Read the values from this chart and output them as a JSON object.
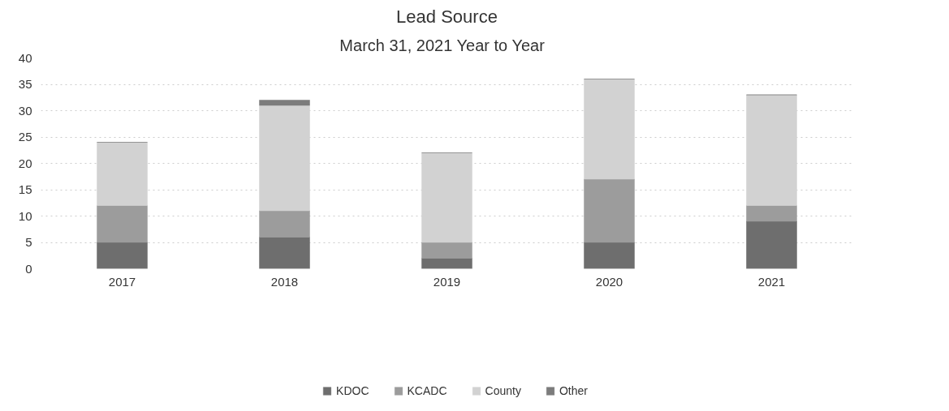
{
  "chart_data": {
    "type": "bar",
    "title": "Lead Source",
    "subtitle": "March 31, 2021   Year to Year",
    "categories": [
      "2017",
      "2018",
      "2019",
      "2020",
      "2021"
    ],
    "stacked": true,
    "series": [
      {
        "name": "KDOC",
        "color": "#6e6e6e",
        "values": [
          5,
          6,
          2,
          5,
          9
        ]
      },
      {
        "name": "KCADC",
        "color": "#9c9c9c",
        "values": [
          7,
          5,
          3,
          12,
          3
        ]
      },
      {
        "name": "County",
        "color": "#d2d2d2",
        "values": [
          12,
          20,
          17,
          19,
          21
        ]
      },
      {
        "name": "Other",
        "color": "#7c7c7c",
        "values": [
          0,
          1,
          0,
          0,
          0
        ]
      }
    ],
    "ylim": [
      0,
      40
    ],
    "yticks": [
      0,
      5,
      10,
      15,
      20,
      25,
      30,
      35,
      40
    ],
    "grid": "y",
    "legend": "bottom"
  }
}
